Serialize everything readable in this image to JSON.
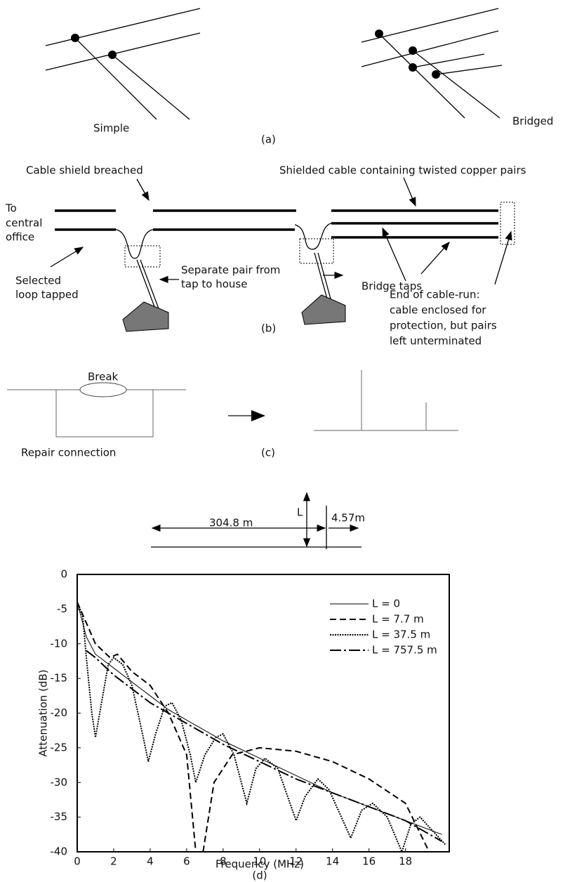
{
  "figure_a": {
    "left_label": "Simple",
    "right_label": "Bridged",
    "caption": "(a)"
  },
  "figure_b": {
    "breach_label": "Cable shield breached",
    "cable_label": "Shielded cable containing twisted copper pairs",
    "office_label": [
      "To",
      "central",
      "office"
    ],
    "tap_label": [
      "Selected",
      "loop tapped"
    ],
    "pair_label": [
      "Separate pair from",
      "tap to house"
    ],
    "bridge_label": "Bridge taps",
    "end_label": [
      "End of cable-run:",
      "cable enclosed for",
      "protection, but pairs",
      "left unterminated"
    ],
    "caption": "(b)"
  },
  "figure_c": {
    "break_label": "Break",
    "repair_label": "Repair connection",
    "caption": "(c)"
  },
  "figure_d_schematic": {
    "main_length": "304.8 m",
    "tap_length": "4.57m",
    "variable_label": "L"
  },
  "chart_data": {
    "type": "line",
    "xlabel": "Frequency (MHz)",
    "ylabel": "Attenuation (dB)",
    "caption": "(d)",
    "xlim": [
      0,
      20.4
    ],
    "ylim": [
      -40,
      0
    ],
    "xticks": [
      0,
      2,
      4,
      6,
      8,
      10,
      12,
      14,
      16,
      18
    ],
    "yticks": [
      0,
      -5,
      -10,
      -15,
      -20,
      -25,
      -30,
      -35,
      -40
    ],
    "legend": "upper right",
    "series": [
      {
        "name": "L = 0",
        "color": "#000000",
        "linestyle": "solid",
        "x": [
          0,
          0.5,
          1,
          2,
          3,
          4,
          5,
          6,
          8,
          10,
          12,
          14,
          16,
          18,
          20
        ],
        "values": [
          -4,
          -9,
          -11.5,
          -13.5,
          -15.5,
          -17.5,
          -19.5,
          -21,
          -24,
          -26.5,
          -29,
          -31.5,
          -33.5,
          -35.5,
          -37.5
        ]
      },
      {
        "name": "L = 7.7 m",
        "color": "#000000",
        "linestyle": "dashed",
        "x": [
          0,
          0.5,
          1,
          1.8,
          2.2,
          3,
          4,
          5,
          6,
          6.5,
          6.7,
          6.9,
          7.5,
          8.5,
          10,
          12,
          14,
          16,
          18,
          19.3
        ],
        "values": [
          -4,
          -7,
          -10,
          -12,
          -11.5,
          -14,
          -16,
          -20,
          -26,
          -40,
          null,
          -40,
          -30,
          -26,
          -25,
          -25.5,
          -27,
          -29.5,
          -33,
          -40
        ]
      },
      {
        "name": "L = 37.5 m",
        "color": "#000000",
        "linestyle": "dotted",
        "x": [
          0,
          0.3,
          0.5,
          0.8,
          1,
          1.3,
          1.7,
          2,
          2.5,
          3,
          3.5,
          3.9,
          4.3,
          4.8,
          5.2,
          5.7,
          6.2,
          6.5,
          7,
          7.6,
          8,
          8.6,
          9.3,
          9.8,
          10.3,
          11,
          12,
          12.5,
          13.2,
          13.8,
          15,
          15.6,
          16.2,
          17,
          17.8,
          18.3,
          18.8,
          19.5,
          20.2
        ],
        "values": [
          -4,
          -6,
          -12,
          -20,
          -23.5,
          -19,
          -13,
          -12,
          -13,
          -16,
          -22,
          -27,
          -23,
          -19,
          -18.5,
          -21,
          -26,
          -30,
          -26,
          -23.5,
          -23,
          -26,
          -33,
          -28,
          -26.5,
          -28,
          -35.5,
          -32,
          -29.5,
          -31,
          -38,
          -34,
          -33,
          -35,
          -40,
          -36,
          -35,
          -37,
          -39
        ]
      },
      {
        "name": "L = 757.5 m",
        "color": "#000000",
        "linestyle": "dashdot",
        "x": [
          0.5,
          1,
          2,
          3,
          4,
          5,
          6,
          8,
          10,
          12,
          14,
          16,
          18,
          20
        ],
        "values": [
          -11,
          -12,
          -14.5,
          -16.5,
          -18.5,
          -20,
          -21.5,
          -24.5,
          -27,
          -29.5,
          -31.5,
          -33.5,
          -35.5,
          -38.5
        ]
      }
    ]
  }
}
